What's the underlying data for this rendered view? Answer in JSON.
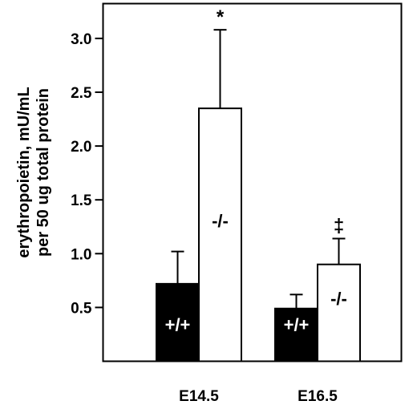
{
  "chart_data": {
    "type": "bar",
    "categories": [
      "E14.5",
      "E16.5"
    ],
    "series": [
      {
        "name": "+/+",
        "values": [
          0.72,
          0.49
        ],
        "errors": [
          0.3,
          0.13
        ],
        "color": "#000000"
      },
      {
        "name": "-/-",
        "values": [
          2.35,
          0.9
        ],
        "errors": [
          0.73,
          0.24
        ],
        "color": "#ffffff"
      }
    ],
    "bar_labels": {
      "wildtype": "+/+",
      "knockout": "-/-"
    },
    "significance": [
      "*",
      "‡"
    ],
    "ylabel_lines": [
      "erythropoietin, mU/mL",
      "per 50 ug total protein"
    ],
    "yticks": [
      "0.5",
      "1.0",
      "1.5",
      "2.0",
      "2.5",
      "3.0"
    ],
    "ylim": [
      0.0,
      3.3
    ],
    "grid": false,
    "legend": "none"
  }
}
